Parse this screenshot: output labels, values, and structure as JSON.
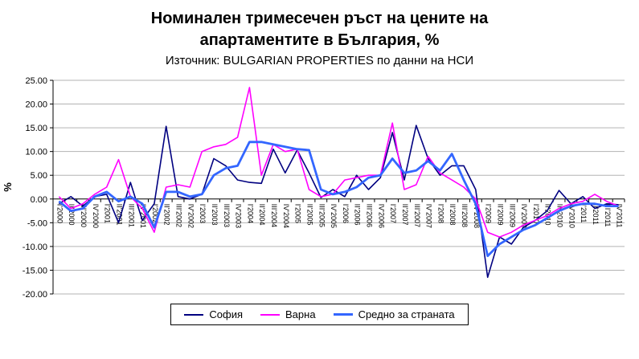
{
  "chart_data": {
    "type": "line",
    "title": "Номинален тримесечен ръст на цените на апартаментите в България, %",
    "subtitle": "Източник: BULGARIAN PROPERTIES по данни на НСИ",
    "ylabel": "%",
    "ylim": [
      -20,
      25
    ],
    "ytick_step": 5,
    "ytick_decimals": 2,
    "grid": true,
    "legend_position": "bottom",
    "categories": [
      "I'2000",
      "II'2000",
      "III'2000",
      "IV'2000",
      "I'2001",
      "II'2001",
      "III'2001",
      "IV'2001",
      "I'2002",
      "II'2002",
      "III'2002",
      "IV'2002",
      "I'2003",
      "II'2003",
      "III'2003",
      "IV'2003",
      "I'2004",
      "II'2004",
      "III'2004",
      "IV'2004",
      "I'2005",
      "II'2005",
      "III'2005",
      "IV'2005",
      "I'2006",
      "II'2006",
      "III'2006",
      "IV'2006",
      "I'2007",
      "II'2007",
      "III'2007",
      "IV'2007",
      "I'2008",
      "II'2008",
      "III'2008",
      "IV'2008",
      "I'2009",
      "II'2009",
      "III'2009",
      "IV'2009",
      "I'2010",
      "II'2010",
      "III'2010",
      "IV'2010",
      "I'2011",
      "II'2011",
      "III'2011",
      "IV'2011"
    ],
    "series": [
      {
        "name": "София",
        "color": "#000080",
        "stroke_width": 1.6,
        "values": [
          -1.0,
          0.5,
          -1.5,
          0.5,
          1.0,
          -5.0,
          3.5,
          -4.5,
          -1.0,
          15.3,
          0.5,
          0.0,
          1.0,
          8.5,
          7.0,
          4.0,
          3.5,
          3.3,
          10.5,
          5.5,
          10.3,
          5.5,
          0.3,
          2.0,
          0.5,
          5.0,
          2.0,
          4.5,
          14.0,
          4.0,
          15.5,
          8.5,
          5.0,
          7.0,
          7.0,
          2.0,
          -16.5,
          -8.0,
          -9.5,
          -6.0,
          -4.5,
          -2.5,
          1.8,
          -1.0,
          0.5,
          -2.0,
          -1.0,
          -1.2
        ]
      },
      {
        "name": "Варна",
        "color": "#FF00FF",
        "stroke_width": 1.6,
        "values": [
          0.5,
          -2.0,
          -1.0,
          1.0,
          2.5,
          8.3,
          0.5,
          -2.0,
          -7.0,
          2.5,
          3.0,
          2.5,
          10.0,
          11.0,
          11.5,
          13.0,
          23.5,
          5.0,
          11.5,
          10.0,
          10.5,
          2.0,
          0.5,
          1.0,
          4.0,
          4.5,
          5.0,
          5.0,
          16.0,
          2.0,
          3.0,
          9.0,
          5.5,
          4.0,
          2.5,
          0.0,
          -7.0,
          -8.0,
          -7.0,
          -5.5,
          -4.5,
          -3.5,
          -2.0,
          -1.0,
          -0.5,
          1.0,
          -0.5,
          -1.5
        ]
      },
      {
        "name": "Средно за страната",
        "color": "#3366FF",
        "stroke_width": 2.8,
        "values": [
          -0.5,
          -2.5,
          -2.0,
          0.5,
          1.5,
          -0.5,
          0.5,
          -1.0,
          -6.0,
          1.5,
          1.5,
          0.5,
          1.0,
          5.0,
          6.5,
          7.0,
          12.0,
          12.0,
          11.5,
          11.0,
          10.5,
          10.3,
          2.0,
          1.0,
          1.5,
          2.5,
          4.5,
          5.0,
          8.5,
          5.5,
          6.0,
          8.0,
          6.0,
          9.5,
          4.0,
          -1.0,
          -12.0,
          -9.5,
          -8.0,
          -6.5,
          -5.5,
          -4.0,
          -2.5,
          -1.5,
          -1.0,
          -1.0,
          -1.5,
          -1.5
        ]
      }
    ],
    "colors": {
      "gridline": "#b3b3b3",
      "axis": "#000000",
      "background": "#ffffff"
    }
  }
}
